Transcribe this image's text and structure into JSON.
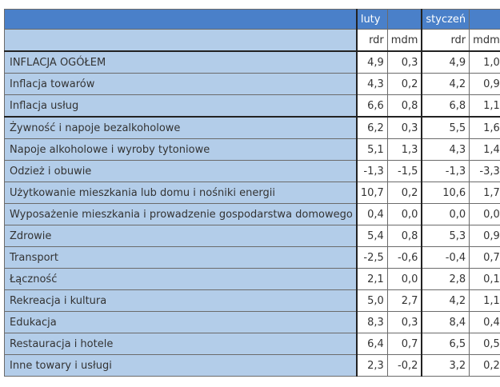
{
  "header": {
    "months": [
      "luty",
      "styczeń"
    ],
    "sub": [
      "rdr",
      "mdm",
      "rdr",
      "mdm"
    ]
  },
  "rows": [
    {
      "label": "INFLACJA OGÓŁEM",
      "v": [
        "4,9",
        "0,3",
        "4,9",
        "1,0"
      ]
    },
    {
      "label": "Inflacja towarów",
      "v": [
        "4,3",
        "0,2",
        "4,2",
        "0,9"
      ]
    },
    {
      "label": "Inflacja usług",
      "v": [
        "6,6",
        "0,8",
        "6,8",
        "1,1"
      ]
    },
    {
      "label": "Żywność i napoje bezalkoholowe",
      "v": [
        "6,2",
        "0,3",
        "5,5",
        "1,6"
      ]
    },
    {
      "label": "Napoje alkoholowe i wyroby tytoniowe",
      "v": [
        "5,1",
        "1,3",
        "4,3",
        "1,4"
      ]
    },
    {
      "label": "Odzież i obuwie",
      "v": [
        "-1,3",
        "-1,5",
        "-1,3",
        "-3,3"
      ]
    },
    {
      "label": "Użytkowanie mieszkania lub domu i nośniki energii",
      "v": [
        "10,7",
        "0,2",
        "10,6",
        "1,7"
      ]
    },
    {
      "label": "Wyposażenie mieszkania i prowadzenie gospodarstwa domowego",
      "v": [
        "0,4",
        "0,0",
        "0,0",
        "0,0"
      ]
    },
    {
      "label": "Zdrowie",
      "v": [
        "5,4",
        "0,8",
        "5,3",
        "0,9"
      ]
    },
    {
      "label": "Transport",
      "v": [
        "-2,5",
        "-0,6",
        "-0,4",
        "0,7"
      ]
    },
    {
      "label": "Łączność",
      "v": [
        "2,1",
        "0,0",
        "2,8",
        "0,1"
      ]
    },
    {
      "label": "Rekreacja i kultura",
      "v": [
        "5,0",
        "2,7",
        "4,2",
        "1,1"
      ]
    },
    {
      "label": "Edukacja",
      "v": [
        "8,3",
        "0,3",
        "8,4",
        "0,4"
      ]
    },
    {
      "label": "Restauracja i hotele",
      "v": [
        "6,4",
        "0,7",
        "6,5",
        "0,5"
      ]
    },
    {
      "label": "Inne towary i usługi",
      "v": [
        "2,3",
        "-0,2",
        "3,2",
        "0,2"
      ]
    }
  ]
}
